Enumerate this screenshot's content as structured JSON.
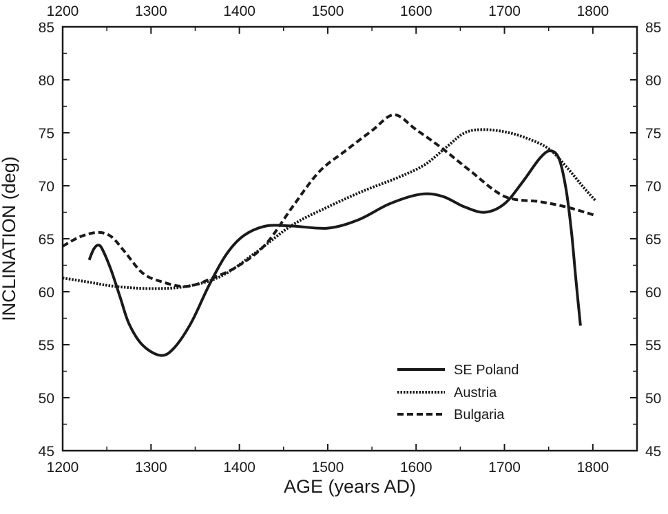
{
  "chart_data": {
    "type": "line",
    "xlabel": "AGE (years AD)",
    "ylabel": "INCLINATION (deg)",
    "xlim": [
      1200,
      1850
    ],
    "ylim": [
      45,
      85
    ],
    "x_ticks": [
      1200,
      1300,
      1400,
      1500,
      1600,
      1700,
      1800
    ],
    "y_ticks": [
      45,
      50,
      55,
      60,
      65,
      70,
      75,
      80,
      85
    ],
    "x_tick_labels": [
      "1200",
      "1300",
      "1400",
      "1500",
      "1600",
      "1700",
      "1800"
    ],
    "y_tick_labels": [
      "45",
      "50",
      "55",
      "60",
      "65",
      "70",
      "75",
      "80",
      "85"
    ],
    "grid": false,
    "legend_position": "bottom-right",
    "series": [
      {
        "name": "SE Poland",
        "style": "solid",
        "color": "#1a1a1a",
        "points": [
          [
            1230,
            63.0
          ],
          [
            1235,
            64.0
          ],
          [
            1240,
            64.4
          ],
          [
            1245,
            64.0
          ],
          [
            1255,
            62.0
          ],
          [
            1265,
            59.5
          ],
          [
            1275,
            57.0
          ],
          [
            1290,
            55.0
          ],
          [
            1310,
            54.0
          ],
          [
            1325,
            54.6
          ],
          [
            1345,
            57.0
          ],
          [
            1365,
            60.5
          ],
          [
            1385,
            63.5
          ],
          [
            1405,
            65.3
          ],
          [
            1430,
            66.2
          ],
          [
            1460,
            66.2
          ],
          [
            1500,
            66.0
          ],
          [
            1535,
            66.8
          ],
          [
            1570,
            68.3
          ],
          [
            1605,
            69.2
          ],
          [
            1630,
            69.0
          ],
          [
            1655,
            68.0
          ],
          [
            1678,
            67.5
          ],
          [
            1700,
            68.3
          ],
          [
            1720,
            70.3
          ],
          [
            1740,
            72.6
          ],
          [
            1752,
            73.3
          ],
          [
            1762,
            72.5
          ],
          [
            1770,
            69.5
          ],
          [
            1776,
            65.5
          ],
          [
            1781,
            61.0
          ],
          [
            1786,
            56.8
          ]
        ]
      },
      {
        "name": "Austria",
        "style": "dotted",
        "color": "#1a1a1a",
        "points": [
          [
            1200,
            61.3
          ],
          [
            1230,
            60.9
          ],
          [
            1260,
            60.5
          ],
          [
            1300,
            60.3
          ],
          [
            1340,
            60.5
          ],
          [
            1380,
            61.5
          ],
          [
            1420,
            63.8
          ],
          [
            1460,
            66.3
          ],
          [
            1500,
            68.0
          ],
          [
            1540,
            69.5
          ],
          [
            1580,
            70.8
          ],
          [
            1610,
            72.0
          ],
          [
            1635,
            73.7
          ],
          [
            1655,
            75.0
          ],
          [
            1675,
            75.3
          ],
          [
            1700,
            75.1
          ],
          [
            1725,
            74.5
          ],
          [
            1750,
            73.5
          ],
          [
            1770,
            71.8
          ],
          [
            1790,
            69.8
          ],
          [
            1803,
            68.6
          ]
        ]
      },
      {
        "name": "Bulgaria",
        "style": "dashed",
        "color": "#1a1a1a",
        "points": [
          [
            1200,
            64.3
          ],
          [
            1220,
            65.2
          ],
          [
            1240,
            65.6
          ],
          [
            1255,
            65.2
          ],
          [
            1270,
            63.8
          ],
          [
            1290,
            61.8
          ],
          [
            1310,
            61.0
          ],
          [
            1340,
            60.5
          ],
          [
            1370,
            61.3
          ],
          [
            1400,
            62.5
          ],
          [
            1430,
            64.5
          ],
          [
            1460,
            68.0
          ],
          [
            1490,
            71.3
          ],
          [
            1520,
            73.3
          ],
          [
            1550,
            75.2
          ],
          [
            1575,
            76.7
          ],
          [
            1600,
            75.3
          ],
          [
            1630,
            73.5
          ],
          [
            1660,
            71.5
          ],
          [
            1700,
            69.0
          ],
          [
            1740,
            68.5
          ],
          [
            1770,
            68.0
          ],
          [
            1803,
            67.2
          ]
        ]
      }
    ]
  }
}
